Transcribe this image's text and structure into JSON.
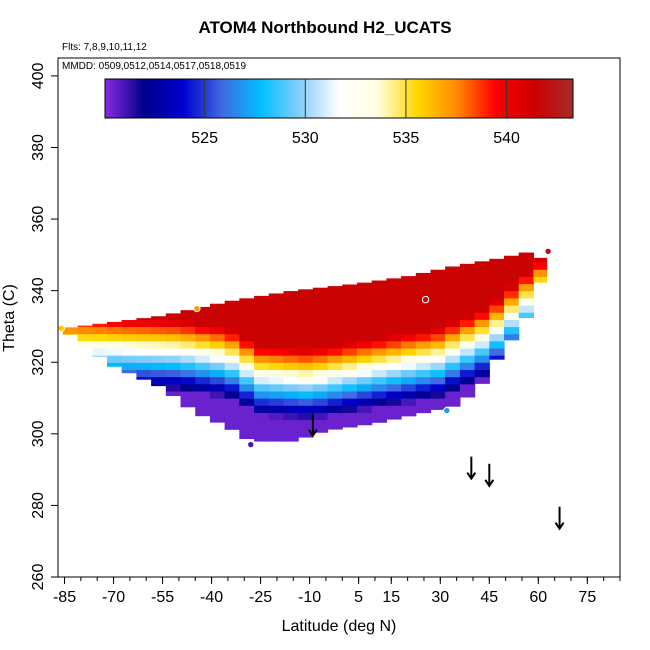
{
  "chart_data": {
    "type": "heatmap",
    "title": "ATOM4 Northbound H2_UCATS",
    "flights_label": "Flts: 7,8,9,10,11,12",
    "dates_label": "MMDD: 0509,0512,0514,0517,0518,0519",
    "xlabel": "Latitude (deg N)",
    "ylabel": "Theta (C)",
    "xlim": [
      -87,
      85
    ],
    "ylim": [
      260,
      405
    ],
    "x_ticks": [
      -85,
      -70,
      -55,
      -40,
      -25,
      -10,
      5,
      15,
      30,
      45,
      60,
      75
    ],
    "y_ticks": [
      260,
      280,
      300,
      320,
      340,
      360,
      380,
      400
    ],
    "colorbar": {
      "min": 520.05,
      "max": 543.3,
      "ticks": [
        525,
        530,
        535,
        540
      ],
      "colors": [
        "#8a2be2",
        "#00008b",
        "#0000cd",
        "#4169e1",
        "#00bfff",
        "#87cefa",
        "#ffffff",
        "#ffffe0",
        "#ffd700",
        "#ff8c00",
        "#ff0000",
        "#cd0000",
        "#a52a2a"
      ]
    },
    "field": {
      "lat_step": 4.5,
      "top_edge": [
        [
          -85.5,
          329.5
        ],
        [
          -72,
          331
        ],
        [
          -55,
          333
        ],
        [
          -45,
          335
        ],
        [
          -35,
          337
        ],
        [
          -15,
          340
        ],
        [
          5,
          342
        ],
        [
          20,
          344
        ],
        [
          35,
          347
        ],
        [
          48,
          349
        ],
        [
          53,
          350
        ],
        [
          58,
          351
        ],
        [
          62.5,
          348
        ]
      ],
      "bottom_edge": [
        [
          -85.5,
          329.5
        ],
        [
          -78,
          324
        ],
        [
          -70,
          319
        ],
        [
          -55,
          313
        ],
        [
          -45,
          306
        ],
        [
          -35,
          302
        ],
        [
          -28,
          298
        ],
        [
          -15,
          298
        ],
        [
          -5,
          301
        ],
        [
          10,
          303
        ],
        [
          25,
          306
        ],
        [
          35,
          308
        ],
        [
          42,
          313
        ],
        [
          48,
          322
        ],
        [
          55,
          330
        ],
        [
          60,
          340
        ],
        [
          62.5,
          348
        ]
      ],
      "center_line": [
        [
          -85,
          323
        ],
        [
          -50,
          322
        ],
        [
          -35,
          320
        ],
        [
          -25,
          315
        ],
        [
          -10,
          314
        ],
        [
          10,
          317
        ],
        [
          30,
          320
        ],
        [
          45,
          326
        ],
        [
          62,
          340
        ]
      ],
      "half_width": 10,
      "value_low": 520.5,
      "value_high": 541.5
    },
    "markers": [
      {
        "lat": -86,
        "theta": 329.5,
        "value": 536
      },
      {
        "lat": -44.5,
        "theta": 335,
        "value": 537
      },
      {
        "lat": 25.5,
        "theta": 337.5,
        "value": 541
      },
      {
        "lat": 32,
        "theta": 306.5,
        "value": 527
      },
      {
        "lat": 63,
        "theta": 351,
        "value": 542
      },
      {
        "lat": -28,
        "theta": 297,
        "value": 521
      }
    ],
    "arrows": [
      {
        "lat": -9,
        "theta": 302
      },
      {
        "lat": 39.5,
        "theta": 290
      },
      {
        "lat": 45,
        "theta": 288
      },
      {
        "lat": 66.5,
        "theta": 276
      }
    ]
  }
}
